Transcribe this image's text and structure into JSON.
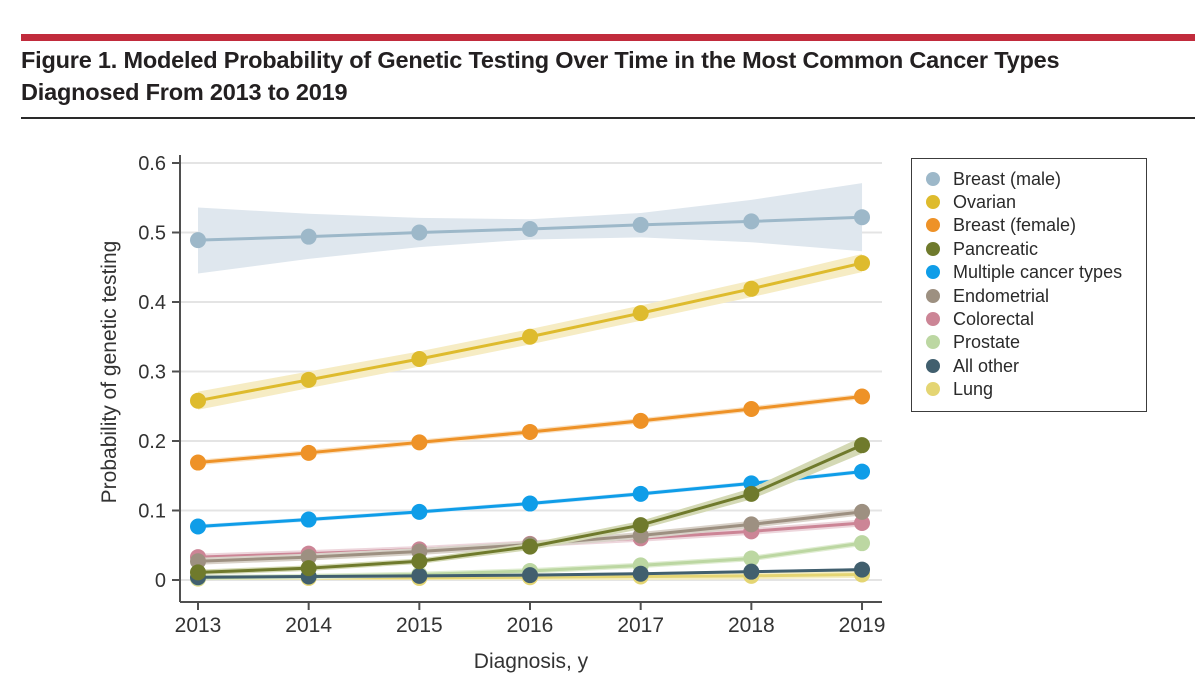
{
  "figure": {
    "title_lines": [
      "Figure 1. Modeled Probability of Genetic Testing Over Time in the Most Common Cancer Types",
      "Diagnosed From 2013 to 2019"
    ],
    "accent_bar_color": "#c12b3c"
  },
  "chart_data": {
    "type": "line",
    "x": [
      2013,
      2014,
      2015,
      2016,
      2017,
      2018,
      2019
    ],
    "xlabel": "Diagnosis, y",
    "ylabel": "Probability of genetic testing",
    "ylim": [
      0,
      0.6
    ],
    "y_ticks": [
      "0",
      "0.1",
      "0.2",
      "0.3",
      "0.4",
      "0.5",
      "0.6"
    ],
    "grid": true,
    "legend_position": "right",
    "series": [
      {
        "name": "Breast (male)",
        "color": "#9db8c9",
        "band_color": "#dfe7ee",
        "values": [
          0.489,
          0.494,
          0.5,
          0.505,
          0.511,
          0.516,
          0.522
        ],
        "band_upper": [
          0.536,
          0.527,
          0.521,
          0.519,
          0.528,
          0.547,
          0.571
        ],
        "band_lower": [
          0.441,
          0.462,
          0.479,
          0.49,
          0.493,
          0.486,
          0.473
        ]
      },
      {
        "name": "Ovarian",
        "color": "#debb2d",
        "band_color": "#f6ecc4",
        "values": [
          0.258,
          0.288,
          0.318,
          0.35,
          0.384,
          0.419,
          0.456
        ],
        "band_upper": [
          0.271,
          0.3,
          0.329,
          0.361,
          0.395,
          0.431,
          0.469
        ],
        "band_lower": [
          0.245,
          0.276,
          0.307,
          0.339,
          0.373,
          0.407,
          0.443
        ]
      },
      {
        "name": "Breast (female)",
        "color": "#ee9227",
        "band_color": "#f9e2c4",
        "values": [
          0.169,
          0.183,
          0.198,
          0.213,
          0.229,
          0.246,
          0.264
        ],
        "band_halfwidth": 0.004
      },
      {
        "name": "Pancreatic",
        "color": "#6f7a2c",
        "band_color": "#d4d9b5",
        "values": [
          0.011,
          0.017,
          0.027,
          0.048,
          0.079,
          0.124,
          0.194
        ],
        "band_upper": [
          0.015,
          0.021,
          0.031,
          0.053,
          0.085,
          0.132,
          0.206
        ],
        "band_lower": [
          0.007,
          0.013,
          0.023,
          0.043,
          0.073,
          0.116,
          0.182
        ]
      },
      {
        "name": "Multiple cancer types",
        "color": "#0f9de8",
        "band_color": "#cfe8f8",
        "values": [
          0.077,
          0.087,
          0.098,
          0.11,
          0.124,
          0.139,
          0.156
        ],
        "band_halfwidth": 0.003
      },
      {
        "name": "Endometrial",
        "color": "#9d9081",
        "band_color": "#d9d2c9",
        "values": [
          0.027,
          0.033,
          0.041,
          0.051,
          0.064,
          0.08,
          0.098
        ],
        "band_halfwidth": 0.005
      },
      {
        "name": "Colorectal",
        "color": "#cc8596",
        "band_color": "#edd6dc",
        "values": [
          0.033,
          0.038,
          0.044,
          0.052,
          0.06,
          0.07,
          0.082
        ],
        "band_halfwidth": 0.005
      },
      {
        "name": "Prostate",
        "color": "#bcd7a2",
        "band_color": "#e0edd2",
        "values": [
          0.003,
          0.005,
          0.008,
          0.013,
          0.021,
          0.031,
          0.053
        ],
        "band_halfwidth": 0.004
      },
      {
        "name": "All other",
        "color": "#415f6e",
        "band_color": "#ccd6da",
        "values": [
          0.004,
          0.005,
          0.006,
          0.007,
          0.009,
          0.012,
          0.015
        ],
        "band_halfwidth": 0.002
      },
      {
        "name": "Lung",
        "color": "#e4d573",
        "band_color": "#f4eec2",
        "values": [
          0.002,
          0.003,
          0.003,
          0.004,
          0.005,
          0.006,
          0.008
        ],
        "band_halfwidth": 0.005
      }
    ],
    "draw_order": [
      "Lung",
      "Prostate",
      "All other",
      "Colorectal",
      "Endometrial",
      "Multiple cancer types",
      "Pancreatic",
      "Breast (female)",
      "Ovarian",
      "Breast (male)"
    ]
  }
}
